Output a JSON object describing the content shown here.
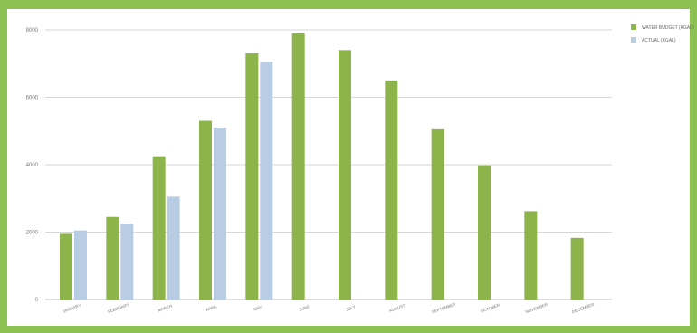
{
  "chart_data": {
    "type": "bar",
    "categories": [
      "JANUARY",
      "FEBRUARY",
      "MARCH",
      "APRIL",
      "MAY",
      "JUNE",
      "JULY",
      "AUGUST",
      "SEPTEMBER",
      "OCTOBER",
      "NOVEMBER",
      "DECEMBER"
    ],
    "series": [
      {
        "name": "WATER BUDGET (KGAL)",
        "color": "#8db44a",
        "values": [
          1950,
          2450,
          4250,
          5300,
          7300,
          7900,
          7400,
          6500,
          5050,
          3980,
          2620,
          1830
        ]
      },
      {
        "name": "ACTUAL (KGAL)",
        "color": "#b8cce4",
        "values": [
          2050,
          2250,
          3050,
          5100,
          7050,
          null,
          null,
          null,
          null,
          null,
          null,
          null
        ]
      }
    ],
    "yticks": [
      "0",
      "2000",
      "4000",
      "6000",
      "8000"
    ],
    "ylim": [
      0,
      8000
    ],
    "grid": true,
    "legend_position": "top-right"
  }
}
